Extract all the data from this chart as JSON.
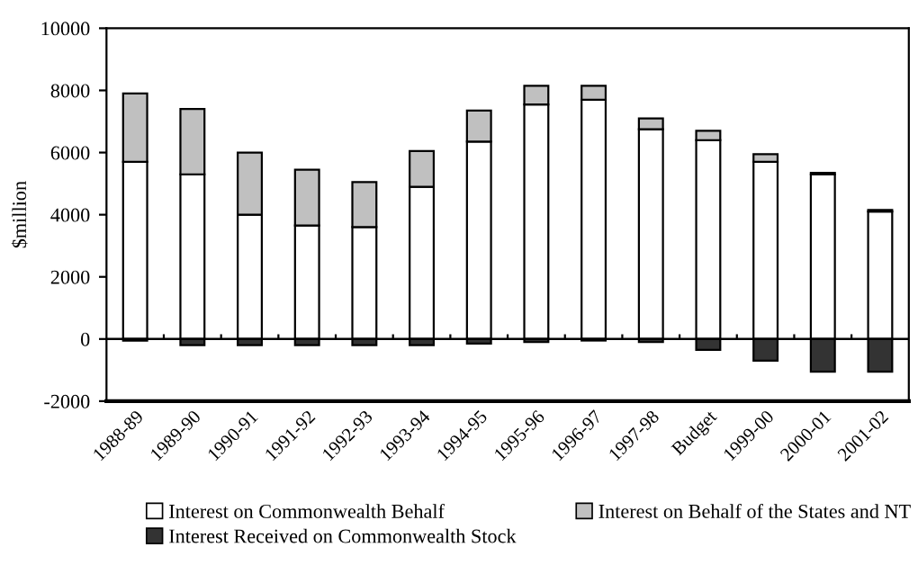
{
  "chart_data": {
    "type": "bar",
    "stacked": true,
    "ylabel": "$million",
    "categories": [
      "1988-89",
      "1989-90",
      "1990-91",
      "1991-92",
      "1992-93",
      "1993-94",
      "1994-95",
      "1995-96",
      "1996-97",
      "1997-98",
      "Budget",
      "1999-00",
      "2000-01",
      "2001-02"
    ],
    "series": [
      {
        "name": "Interest on Commonwealth Behalf",
        "color": "#ffffff",
        "values": [
          5700,
          5300,
          4000,
          3650,
          3600,
          4900,
          6350,
          7550,
          7700,
          6750,
          6400,
          5700,
          5300,
          4100
        ]
      },
      {
        "name": "Interest on Behalf of the States and NT",
        "color": "#c0c0c0",
        "values": [
          2200,
          2100,
          2000,
          1800,
          1450,
          1150,
          1000,
          600,
          450,
          350,
          300,
          250,
          50,
          50
        ]
      },
      {
        "name": "Interest Received on Commonwealth Stock",
        "color": "#333333",
        "values": [
          -50,
          -200,
          -200,
          -200,
          -200,
          -200,
          -150,
          -100,
          -50,
          -100,
          -350,
          -700,
          -1050,
          -1050
        ]
      }
    ],
    "ylim": [
      -2000,
      10000
    ],
    "yticks": [
      -2000,
      0,
      2000,
      4000,
      6000,
      8000,
      10000
    ],
    "legend": "bottom"
  }
}
